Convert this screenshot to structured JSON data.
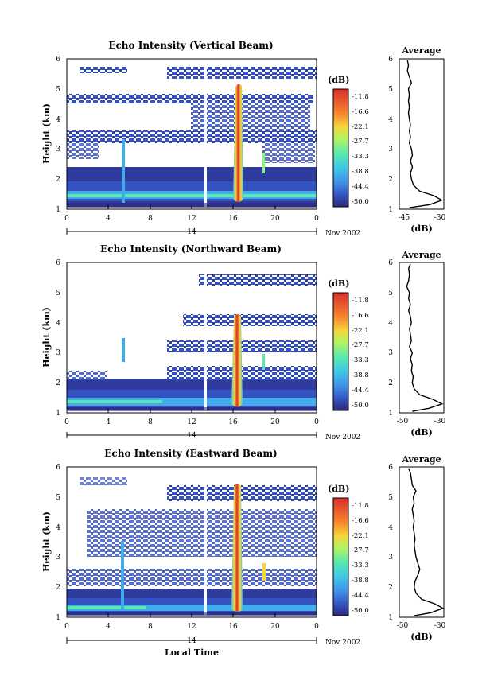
{
  "chart_data": [
    {
      "type": "heatmap",
      "title": "Echo Intensity (Vertical Beam)",
      "ylabel": "Height (km)",
      "xlabel": "",
      "x_ticks": [
        "0",
        "4",
        "8",
        "12",
        "16",
        "20",
        "0"
      ],
      "y_ticks": [
        "1",
        "2",
        "3",
        "4",
        "5",
        "6"
      ],
      "xlim": [
        0,
        24
      ],
      "ylim": [
        1,
        6
      ],
      "date_day": "14",
      "date_month": "Nov 2002",
      "colorbar": {
        "unit": "(dB)",
        "ticks": [
          "-11.8",
          "-16.6",
          "-22.1",
          "-27.7",
          "-33.3",
          "-38.8",
          "-44.4",
          "-50.0"
        ]
      },
      "profile": {
        "title": "Average",
        "xlabel": "(dB)",
        "x_ticks": [
          "-45",
          "-30"
        ],
        "xlim": [
          -50,
          -28
        ],
        "y": [
          1.05,
          1.15,
          1.3,
          1.45,
          1.6,
          1.8,
          2.0,
          2.2,
          2.4,
          2.6,
          2.8,
          3.0,
          3.2,
          3.4,
          3.6,
          3.8,
          4.0,
          4.2,
          4.4,
          4.6,
          4.8,
          5.0,
          5.2,
          5.4,
          5.6,
          5.8,
          5.95
        ],
        "x": [
          -45,
          -35,
          -29,
          -33,
          -40,
          -43,
          -44,
          -44.5,
          -43.5,
          -44.5,
          -43.5,
          -44,
          -45,
          -44.5,
          -45,
          -44.5,
          -45,
          -45.5,
          -45,
          -45.5,
          -45,
          -45.5,
          -44,
          -45,
          -46,
          -45.5,
          -46
        ]
      }
    },
    {
      "type": "heatmap",
      "title": "Echo Intensity (Northward Beam)",
      "ylabel": "Height (km)",
      "xlabel": "",
      "x_ticks": [
        "0",
        "4",
        "8",
        "12",
        "16",
        "20",
        "0"
      ],
      "y_ticks": [
        "1",
        "2",
        "3",
        "4",
        "5",
        "6"
      ],
      "xlim": [
        0,
        24
      ],
      "ylim": [
        1,
        6
      ],
      "date_day": "14",
      "date_month": "Nov 2002",
      "colorbar": {
        "unit": "(dB)",
        "ticks": [
          "-11.8",
          "-16.6",
          "-22.1",
          "-27.7",
          "-33.3",
          "-38.8",
          "-44.4",
          "-50.0"
        ]
      },
      "profile": {
        "title": "Average",
        "xlabel": "(dB)",
        "x_ticks": [
          "-50",
          "-30"
        ],
        "xlim": [
          -52,
          -28
        ],
        "y": [
          1.05,
          1.15,
          1.3,
          1.45,
          1.6,
          1.8,
          2.0,
          2.2,
          2.4,
          2.6,
          2.8,
          3.0,
          3.2,
          3.4,
          3.6,
          3.8,
          4.0,
          4.2,
          4.4,
          4.6,
          4.8,
          5.0,
          5.2,
          5.4,
          5.6,
          5.8,
          5.95
        ],
        "x": [
          -45,
          -36,
          -29,
          -34,
          -41,
          -44,
          -45,
          -44.5,
          -45.5,
          -45,
          -46,
          -45,
          -46.5,
          -45.5,
          -46,
          -46.5,
          -45.5,
          -46,
          -47,
          -46,
          -47,
          -46.5,
          -48,
          -47,
          -46.5,
          -47,
          -46
        ]
      }
    },
    {
      "type": "heatmap",
      "title": "Echo Intensity (Eastward Beam)",
      "ylabel": "Height (km)",
      "xlabel": "Local Time",
      "x_ticks": [
        "0",
        "4",
        "8",
        "12",
        "16",
        "20",
        "0"
      ],
      "y_ticks": [
        "1",
        "2",
        "3",
        "4",
        "5",
        "6"
      ],
      "xlim": [
        0,
        24
      ],
      "ylim": [
        1,
        6
      ],
      "date_day": "14",
      "date_month": "Nov 2002",
      "colorbar": {
        "unit": "(dB)",
        "ticks": [
          "-11.8",
          "-16.6",
          "-22.1",
          "-27.7",
          "-33.3",
          "-38.8",
          "-44.4",
          "-50.0"
        ]
      },
      "profile": {
        "title": "Average",
        "xlabel": "(dB)",
        "x_ticks": [
          "-50",
          "-30"
        ],
        "xlim": [
          -52,
          -28
        ],
        "y": [
          1.05,
          1.15,
          1.3,
          1.45,
          1.6,
          1.8,
          2.0,
          2.2,
          2.4,
          2.6,
          2.8,
          3.0,
          3.2,
          3.4,
          3.6,
          3.8,
          4.0,
          4.2,
          4.4,
          4.6,
          4.8,
          5.0,
          5.2,
          5.4,
          5.6,
          5.8,
          5.95
        ],
        "x": [
          -44,
          -35,
          -28.5,
          -33,
          -40,
          -43,
          -44,
          -43.5,
          -42,
          -41,
          -42,
          -43,
          -43.5,
          -44,
          -43.5,
          -44,
          -44.5,
          -44,
          -44.5,
          -45,
          -44,
          -44.5,
          -43,
          -45,
          -45.5,
          -46,
          -47
        ]
      }
    }
  ],
  "colorbar_colors": [
    "#2b2a7a",
    "#2f3c9e",
    "#3553c0",
    "#3a6fd8",
    "#3f8de6",
    "#42abec",
    "#3fc7e6",
    "#44dcd0",
    "#58e8b0",
    "#86f28a",
    "#b5f45e",
    "#dcee44",
    "#f6d53a",
    "#f9ae33",
    "#f5822c",
    "#ea5528",
    "#d82e2a"
  ]
}
